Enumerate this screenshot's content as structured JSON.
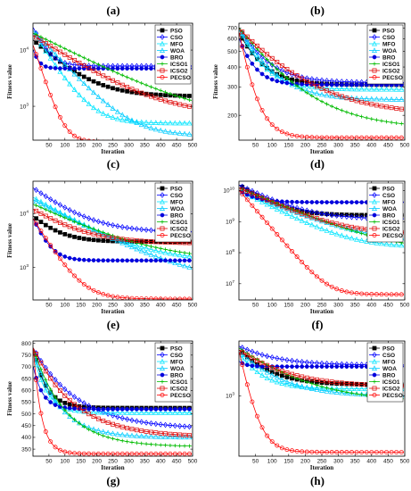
{
  "chart_data": [
    {
      "type": "line",
      "panel": "(a)",
      "bottom_label": "(c)",
      "xlabel": "Iteration",
      "ylabel": "Fitness value",
      "xlim": [
        0,
        500
      ],
      "yscale": "log",
      "ylim": [
        250,
        30000
      ],
      "xticks": [
        50,
        100,
        150,
        200,
        250,
        300,
        350,
        400,
        450,
        500
      ],
      "yticks": [
        {
          "v": 1000,
          "t": "10",
          "e": "3"
        },
        {
          "v": 10000,
          "t": "10",
          "e": "4"
        }
      ],
      "series": [
        {
          "name": "PSO",
          "color": "#000000",
          "marker": "square",
          "start": 15000,
          "end": 1500,
          "tau": 80
        },
        {
          "name": "CSO",
          "color": "#0000ff",
          "marker": "diamond",
          "start": 25000,
          "end": 5200,
          "tau": 30
        },
        {
          "name": "MFO",
          "color": "#00e5ff",
          "marker": "triangle",
          "start": 20000,
          "end": 500,
          "tau": 50
        },
        {
          "name": "WOA",
          "color": "#00ccff",
          "marker": "triangle",
          "start": 22000,
          "end": 300,
          "tau": 70
        },
        {
          "name": "BRO",
          "color": "#0000dd",
          "marker": "circle-filled",
          "start": 10000,
          "end": 4700,
          "tau": 15
        },
        {
          "name": "ICSO1",
          "color": "#00bb00",
          "marker": "cross",
          "start": 20000,
          "end": 550,
          "tau": 150
        },
        {
          "name": "ICSO2",
          "color": "#dd0000",
          "marker": "square-open",
          "start": 18000,
          "end": 700,
          "tau": 120
        },
        {
          "name": "PECSO",
          "color": "#ff0000",
          "marker": "circle",
          "start": 12000,
          "end": 230,
          "tau": 25
        }
      ]
    },
    {
      "type": "line",
      "panel": "(b)",
      "bottom_label": "(d)",
      "xlabel": "Iteration",
      "ylabel": "Fitness value",
      "xlim": [
        0,
        500
      ],
      "yscale": "log",
      "ylim": [
        140,
        750
      ],
      "xticks": [
        50,
        100,
        150,
        200,
        250,
        300,
        350,
        400,
        450,
        500
      ],
      "yticks": [
        {
          "v": 200,
          "t": "200"
        },
        {
          "v": 300,
          "t": "300"
        },
        {
          "v": 400,
          "t": "400"
        },
        {
          "v": 500,
          "t": "500"
        },
        {
          "v": 600,
          "t": "600"
        },
        {
          "v": 700,
          "t": "700"
        }
      ],
      "series": [
        {
          "name": "PSO",
          "color": "#000000",
          "marker": "square",
          "start": 650,
          "end": 310,
          "tau": 60
        },
        {
          "name": "CSO",
          "color": "#0000ff",
          "marker": "diamond",
          "start": 700,
          "end": 320,
          "tau": 70
        },
        {
          "name": "MFO",
          "color": "#00e5ff",
          "marker": "triangle",
          "start": 680,
          "end": 290,
          "tau": 60
        },
        {
          "name": "WOA",
          "color": "#00ccff",
          "marker": "triangle",
          "start": 690,
          "end": 250,
          "tau": 80
        },
        {
          "name": "BRO",
          "color": "#0000dd",
          "marker": "circle-filled",
          "start": 600,
          "end": 310,
          "tau": 40
        },
        {
          "name": "ICSO1",
          "color": "#00bb00",
          "marker": "cross",
          "start": 700,
          "end": 165,
          "tau": 130
        },
        {
          "name": "ICSO2",
          "color": "#dd0000",
          "marker": "square-open",
          "start": 690,
          "end": 200,
          "tau": 150
        },
        {
          "name": "PECSO",
          "color": "#ff0000",
          "marker": "circle",
          "start": 650,
          "end": 145,
          "tau": 35
        }
      ]
    },
    {
      "type": "line",
      "panel": "",
      "bottom_label": "(e)",
      "xlabel": "Iteration",
      "ylabel": "Fitness value",
      "xlim": [
        0,
        500
      ],
      "yscale": "log",
      "ylim": [
        250,
        40000
      ],
      "xticks": [
        50,
        100,
        150,
        200,
        250,
        300,
        350,
        400,
        450,
        500
      ],
      "yticks": [
        {
          "v": 1000,
          "t": "10",
          "e": "3"
        },
        {
          "v": 10000,
          "t": "10",
          "e": "4"
        }
      ],
      "series": [
        {
          "name": "PSO",
          "color": "#000000",
          "marker": "square",
          "start": 9000,
          "end": 3000,
          "tau": 60
        },
        {
          "name": "CSO",
          "color": "#0000ff",
          "marker": "diamond",
          "start": 30000,
          "end": 4500,
          "tau": 90
        },
        {
          "name": "MFO",
          "color": "#00e5ff",
          "marker": "triangle",
          "start": 20000,
          "end": 1300,
          "tau": 120
        },
        {
          "name": "WOA",
          "color": "#00ccff",
          "marker": "triangle",
          "start": 18000,
          "end": 480,
          "tau": 140
        },
        {
          "name": "BRO",
          "color": "#0000dd",
          "marker": "circle-filled",
          "start": 8000,
          "end": 1350,
          "tau": 30
        },
        {
          "name": "ICSO1",
          "color": "#00bb00",
          "marker": "cross",
          "start": 15000,
          "end": 1300,
          "tau": 150
        },
        {
          "name": "ICSO2",
          "color": "#dd0000",
          "marker": "square-open",
          "start": 12000,
          "end": 2800,
          "tau": 100
        },
        {
          "name": "PECSO",
          "color": "#ff0000",
          "marker": "circle",
          "start": 8000,
          "end": 260,
          "tau": 45
        }
      ]
    },
    {
      "type": "line",
      "panel": "",
      "bottom_label": "(f)",
      "xlabel": "Iteration",
      "ylabel": "",
      "xlim": [
        0,
        500
      ],
      "yscale": "log",
      "ylim": [
        3000000,
        20000000000
      ],
      "xticks": [
        50,
        100,
        150,
        200,
        250,
        300,
        350,
        400,
        450,
        500
      ],
      "yticks": [
        {
          "v": 10000000,
          "t": "10",
          "e": "7"
        },
        {
          "v": 100000000,
          "t": "10",
          "e": "8"
        },
        {
          "v": 1000000000,
          "t": "10",
          "e": "9"
        },
        {
          "v": 10000000000,
          "t": "10",
          "e": "10"
        }
      ],
      "series": [
        {
          "name": "PSO",
          "color": "#000000",
          "marker": "square",
          "start": 15000000000,
          "end": 1600000000,
          "tau": 60
        },
        {
          "name": "CSO",
          "color": "#0000ff",
          "marker": "diamond",
          "start": 15000000000,
          "end": 1200000000,
          "tau": 80
        },
        {
          "name": "MFO",
          "color": "#00e5ff",
          "marker": "triangle",
          "start": 10000000000,
          "end": 150000000,
          "tau": 80
        },
        {
          "name": "WOA",
          "color": "#00ccff",
          "marker": "triangle",
          "start": 10000000000,
          "end": 220000000,
          "tau": 100
        },
        {
          "name": "BRO",
          "color": "#0000dd",
          "marker": "circle-filled",
          "start": 10000000000,
          "end": 4200000000,
          "tau": 40
        },
        {
          "name": "ICSO1",
          "color": "#00bb00",
          "marker": "cross",
          "start": 12000000000,
          "end": 120000000,
          "tau": 100
        },
        {
          "name": "ICSO2",
          "color": "#dd0000",
          "marker": "square-open",
          "start": 12000000000,
          "end": 400000000,
          "tau": 90
        },
        {
          "name": "PECSO",
          "color": "#ff0000",
          "marker": "circle",
          "start": 10000000000,
          "end": 4500000,
          "tau": 35
        }
      ]
    },
    {
      "type": "line",
      "panel": "",
      "bottom_label": "(g)",
      "xlabel": "Iteration",
      "ylabel": "Fitness value",
      "xlim": [
        0,
        500
      ],
      "yscale": "linear",
      "ylim": [
        320,
        810
      ],
      "xticks": [
        50,
        100,
        150,
        200,
        250,
        300,
        350,
        400,
        450,
        500
      ],
      "yticks": [
        {
          "v": 350,
          "t": "350"
        },
        {
          "v": 400,
          "t": "400"
        },
        {
          "v": 450,
          "t": "450"
        },
        {
          "v": 500,
          "t": "500"
        },
        {
          "v": 550,
          "t": "550"
        },
        {
          "v": 600,
          "t": "600"
        },
        {
          "v": 650,
          "t": "650"
        },
        {
          "v": 700,
          "t": "700"
        },
        {
          "v": 750,
          "t": "750"
        },
        {
          "v": 800,
          "t": "800"
        }
      ],
      "series": [
        {
          "name": "PSO",
          "color": "#000000",
          "marker": "square",
          "start": 780,
          "end": 525,
          "tau": 40
        },
        {
          "name": "CSO",
          "color": "#0000ff",
          "marker": "diamond",
          "start": 780,
          "end": 435,
          "tau": 140
        },
        {
          "name": "MFO",
          "color": "#00e5ff",
          "marker": "triangle",
          "start": 760,
          "end": 505,
          "tau": 40
        },
        {
          "name": "WOA",
          "color": "#00ccff",
          "marker": "triangle",
          "start": 770,
          "end": 400,
          "tau": 80
        },
        {
          "name": "BRO",
          "color": "#0000dd",
          "marker": "circle-filled",
          "start": 700,
          "end": 520,
          "tau": 30
        },
        {
          "name": "ICSO1",
          "color": "#00bb00",
          "marker": "cross",
          "start": 780,
          "end": 360,
          "tau": 100
        },
        {
          "name": "ICSO2",
          "color": "#dd0000",
          "marker": "square-open",
          "start": 780,
          "end": 400,
          "tau": 130
        },
        {
          "name": "PECSO",
          "color": "#ff0000",
          "marker": "circle",
          "start": 780,
          "end": 330,
          "tau": 25
        }
      ]
    },
    {
      "type": "line",
      "panel": "",
      "bottom_label": "(h)",
      "xlabel": "Iteration",
      "ylabel": "",
      "xlim": [
        0,
        500
      ],
      "yscale": "log",
      "ylim": [
        300,
        3000
      ],
      "xticks": [
        50,
        100,
        150,
        200,
        250,
        300,
        350,
        400,
        450,
        500
      ],
      "yticks": [
        {
          "v": 1000,
          "t": "10",
          "e": "3"
        }
      ],
      "series": [
        {
          "name": "PSO",
          "color": "#000000",
          "marker": "square",
          "start": 2500,
          "end": 1250,
          "tau": 80
        },
        {
          "name": "CSO",
          "color": "#0000ff",
          "marker": "diamond",
          "start": 2700,
          "end": 1850,
          "tau": 100
        },
        {
          "name": "MFO",
          "color": "#00e5ff",
          "marker": "triangle",
          "start": 2300,
          "end": 1150,
          "tau": 60
        },
        {
          "name": "WOA",
          "color": "#00ccff",
          "marker": "triangle",
          "start": 2400,
          "end": 1000,
          "tau": 100
        },
        {
          "name": "BRO",
          "color": "#0000dd",
          "marker": "circle-filled",
          "start": 2000,
          "end": 1800,
          "tau": 20
        },
        {
          "name": "ICSO1",
          "color": "#00bb00",
          "marker": "cross",
          "start": 2600,
          "end": 880,
          "tau": 150
        },
        {
          "name": "ICSO2",
          "color": "#dd0000",
          "marker": "square-open",
          "start": 2500,
          "end": 1200,
          "tau": 120
        },
        {
          "name": "PECSO",
          "color": "#ff0000",
          "marker": "circle",
          "start": 2400,
          "end": 325,
          "tau": 30
        }
      ]
    }
  ]
}
